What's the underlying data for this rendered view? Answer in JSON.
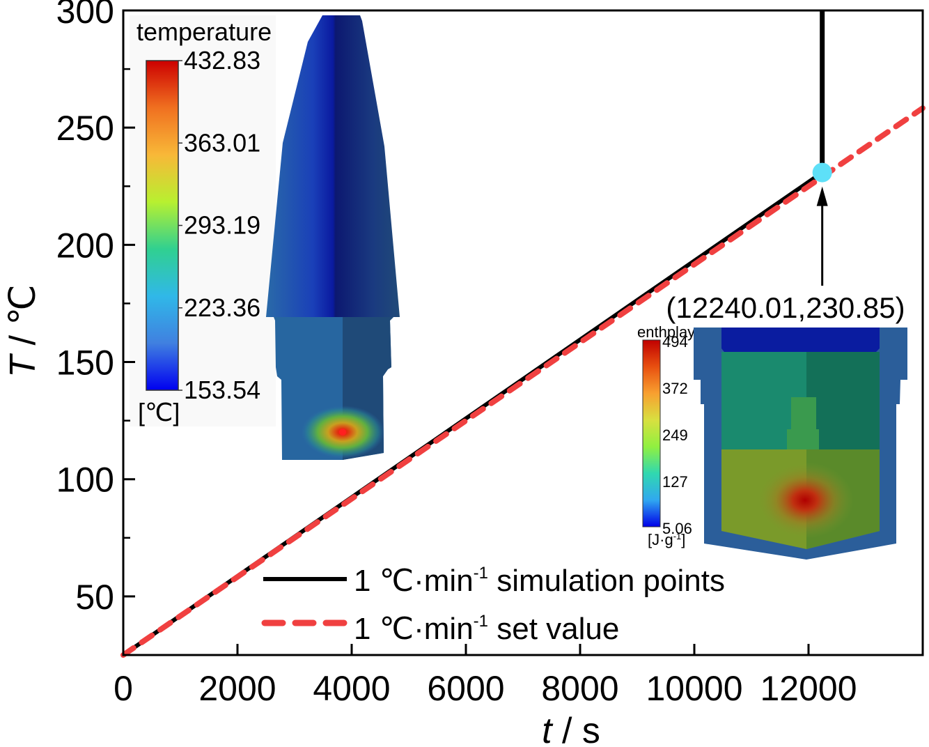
{
  "chart_data": {
    "type": "line",
    "title": "",
    "xlabel": "t / s",
    "xlabel_italic_part": "t",
    "xlabel_unit": " / s",
    "ylabel": "T / ℃",
    "ylabel_italic_part": "T",
    "ylabel_unit": " / ℃",
    "xlim": [
      0,
      14000
    ],
    "ylim": [
      25,
      300
    ],
    "x_ticks": [
      0,
      2000,
      4000,
      6000,
      8000,
      10000,
      12000
    ],
    "x_tick_labels": [
      "0",
      "2000",
      "4000",
      "6000",
      "8000",
      "10000",
      "12000"
    ],
    "x_minor_ticks": [
      1000,
      3000,
      5000,
      7000,
      9000,
      11000,
      13000
    ],
    "y_ticks": [
      50,
      100,
      150,
      200,
      250,
      300
    ],
    "y_tick_labels": [
      "50",
      "100",
      "150",
      "200",
      "250",
      "300"
    ],
    "y_minor_ticks": [
      75,
      125,
      175,
      225,
      275
    ],
    "grid": false,
    "legend_position": "bottom-center",
    "series": [
      {
        "name": "1 ℃·min⁻¹ simulation points",
        "legend_main": "1 ℃·min",
        "legend_sup": "-1",
        "legend_rest": " simulation points",
        "style": "solid",
        "color": "#000000",
        "x": [
          0,
          12240.01
        ],
        "y": [
          25,
          230.85
        ]
      },
      {
        "name": "1 ℃·min⁻¹ set value",
        "legend_main": "1 ℃·min",
        "legend_sup": "-1",
        "legend_rest": " set value",
        "style": "dashed",
        "color": "#f04040",
        "x": [
          0,
          14000
        ],
        "y": [
          25,
          258.33
        ]
      }
    ],
    "vertical_line": {
      "x": 12240.01,
      "y_from": 230.85,
      "y_to": 300,
      "color": "#000000"
    },
    "marker": {
      "x": 12240.01,
      "y": 230.85,
      "color": "#5ee0f8"
    },
    "annotations": [
      {
        "text": "(12240.01,230.85)",
        "points_to": [
          12240.01,
          230.85
        ]
      }
    ],
    "insets": [
      {
        "name": "temperature-field",
        "colorbar_title": "temperature",
        "colorbar_ticks": [
          "432.83",
          "363.01",
          "293.19",
          "223.36",
          "153.54"
        ],
        "colorbar_unit": "[℃]",
        "colorbar_colors": [
          "#cc0000",
          "#f07020",
          "#f8b838",
          "#b8f030",
          "#30d090",
          "#30b8e8",
          "#4080e0",
          "#0000f0"
        ]
      },
      {
        "name": "enthalpy-field",
        "colorbar_title": "enthplay",
        "colorbar_ticks": [
          "494",
          "372",
          "249",
          "127",
          "5.06"
        ],
        "colorbar_unit": "[J·g",
        "colorbar_unit_sup": "-1",
        "colorbar_unit_end": "]",
        "colorbar_colors": [
          "#c00000",
          "#e85010",
          "#f8a030",
          "#d8e040",
          "#90f040",
          "#30d8b0",
          "#30a8f0",
          "#0000e8"
        ]
      }
    ]
  }
}
